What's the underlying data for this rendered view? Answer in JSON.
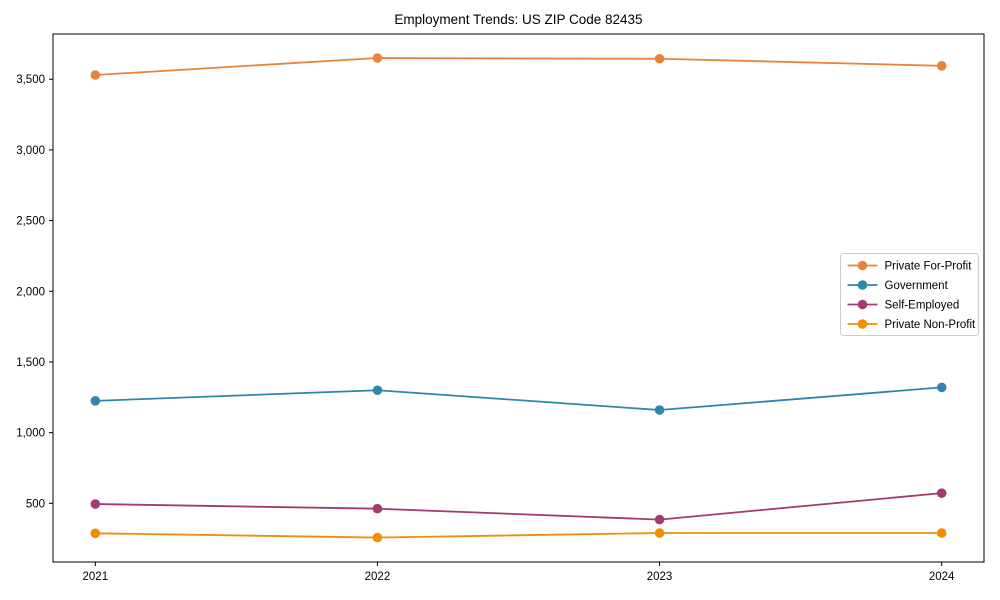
{
  "figure": {
    "background": "#ffffff",
    "axis_color": "#000000"
  },
  "chart_data": {
    "type": "line",
    "title": "Employment Trends: US ZIP Code 82435",
    "xlabel": "",
    "ylabel": "",
    "x": [
      2021,
      2022,
      2023,
      2024
    ],
    "x_tick_labels": [
      "2021",
      "2022",
      "2023",
      "2024"
    ],
    "series": [
      {
        "name": "Private For-Profit",
        "color": "#E8833A",
        "values": [
          3530,
          3650,
          3645,
          3595
        ]
      },
      {
        "name": "Government",
        "color": "#2E86AB",
        "values": [
          1225,
          1300,
          1160,
          1320
        ]
      },
      {
        "name": "Self-Employed",
        "color": "#A23B72",
        "values": [
          495,
          462,
          385,
          572
        ]
      },
      {
        "name": "Private Non-Profit",
        "color": "#F18F01",
        "values": [
          288,
          258,
          290,
          290
        ]
      }
    ],
    "y_ticks": [
      500,
      1000,
      1500,
      2000,
      2500,
      3000,
      3500
    ],
    "y_tick_labels": [
      "500",
      "1,000",
      "1,500",
      "2,000",
      "2,500",
      "3,000",
      "3,500"
    ],
    "xlim": [
      2020.85,
      2024.15
    ],
    "ylim": [
      85,
      3820
    ],
    "grid": false,
    "legend_position": "center right",
    "marker": "circle"
  }
}
